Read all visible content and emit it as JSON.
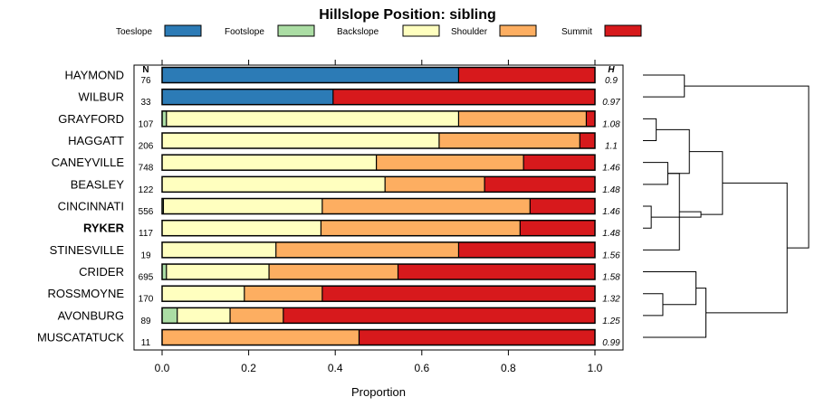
{
  "chart_data": {
    "type": "stacked-bar",
    "title": "Hillslope Position: sibling",
    "xlabel": "Proportion",
    "xlim": [
      0,
      1
    ],
    "xticks": [
      "0.0",
      "0.2",
      "0.4",
      "0.6",
      "0.8",
      "1.0"
    ],
    "n_header": "N",
    "h_header": "H",
    "legend": [
      {
        "name": "Toeslope",
        "color": "#2C7BB6"
      },
      {
        "name": "Footslope",
        "color": "#ABDDA4"
      },
      {
        "name": "Backslope",
        "color": "#FFFFBF"
      },
      {
        "name": "Shoulder",
        "color": "#FDAE61"
      },
      {
        "name": "Summit",
        "color": "#D7191C"
      }
    ],
    "rows": [
      {
        "name": "HAYMOND",
        "n": "76",
        "h": "0.9",
        "bold": false,
        "values": [
          0.685,
          0,
          0,
          0,
          0.315
        ]
      },
      {
        "name": "WILBUR",
        "n": "33",
        "h": "0.97",
        "bold": false,
        "values": [
          0.395,
          0,
          0,
          0,
          0.605
        ]
      },
      {
        "name": "GRAYFORD",
        "n": "107",
        "h": "1.08",
        "bold": false,
        "values": [
          0,
          0.01,
          0.675,
          0.295,
          0.02
        ]
      },
      {
        "name": "HAGGATT",
        "n": "206",
        "h": "1.1",
        "bold": false,
        "values": [
          0,
          0,
          0.64,
          0.325,
          0.035
        ]
      },
      {
        "name": "CANEYVILLE",
        "n": "748",
        "h": "1.46",
        "bold": false,
        "values": [
          0,
          0,
          0.495,
          0.34,
          0.165
        ]
      },
      {
        "name": "BEASLEY",
        "n": "122",
        "h": "1.48",
        "bold": false,
        "values": [
          0,
          0,
          0.515,
          0.23,
          0.255
        ]
      },
      {
        "name": "CINCINNATI",
        "n": "556",
        "h": "1.46",
        "bold": false,
        "values": [
          0,
          0.003,
          0.367,
          0.48,
          0.15
        ]
      },
      {
        "name": "RYKER",
        "n": "117",
        "h": "1.48",
        "bold": true,
        "values": [
          0,
          0,
          0.367,
          0.46,
          0.173
        ]
      },
      {
        "name": "STINESVILLE",
        "n": "19",
        "h": "1.56",
        "bold": false,
        "values": [
          0,
          0,
          0.263,
          0.422,
          0.315
        ]
      },
      {
        "name": "CRIDER",
        "n": "695",
        "h": "1.58",
        "bold": false,
        "values": [
          0,
          0.01,
          0.237,
          0.298,
          0.455
        ]
      },
      {
        "name": "ROSSMOYNE",
        "n": "170",
        "h": "1.32",
        "bold": false,
        "values": [
          0,
          0,
          0.19,
          0.18,
          0.63
        ]
      },
      {
        "name": "AVONBURG",
        "n": "89",
        "h": "1.25",
        "bold": false,
        "values": [
          0,
          0.035,
          0.122,
          0.123,
          0.72
        ]
      },
      {
        "name": "MUSCATATUCK",
        "n": "11",
        "h": "0.99",
        "bold": false,
        "values": [
          0,
          0,
          0,
          0.455,
          0.545
        ]
      }
    ],
    "dendrogram": {
      "merges": [
        {
          "left": 0,
          "right": 1,
          "height": 0.25
        },
        {
          "left": 2,
          "right": 3,
          "height": 0.08
        },
        {
          "left": 4,
          "right": 5,
          "height": 0.15
        },
        {
          "left": 6,
          "right": 7,
          "height": 0.05
        },
        {
          "left": 10,
          "right": 11,
          "height": 0.12
        },
        {
          "left": "m2",
          "right": 8,
          "height": 0.22
        },
        {
          "left": "m1",
          "right": "m2",
          "height": 0.28
        },
        {
          "left": "m4",
          "right": 9,
          "height": 0.32
        },
        {
          "left": "m3",
          "right": "m5",
          "height": 0.35
        },
        {
          "left": "m7",
          "right": 12,
          "height": 0.38
        },
        {
          "left": "m6",
          "right": "m8",
          "height": 0.48
        },
        {
          "left": "m9",
          "right": "m10",
          "height": 0.87
        },
        {
          "left": "m0",
          "right": "m11",
          "height": 1.0
        }
      ]
    }
  }
}
